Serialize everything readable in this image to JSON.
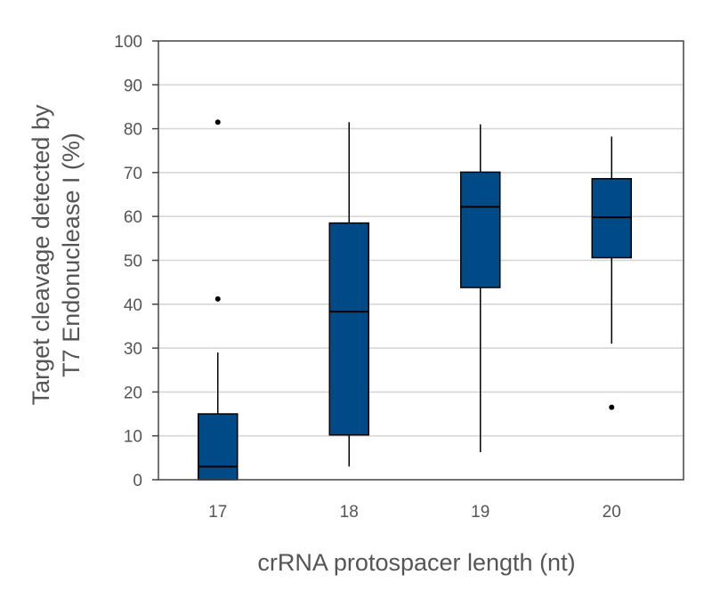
{
  "chart_data": {
    "type": "box",
    "xlabel": "crRNA protospacer length (nt)",
    "ylabel_lines": [
      "Target cleavage detected by",
      "T7 Endonuclease I (%)"
    ],
    "ylim": [
      0,
      100
    ],
    "yticks": [
      0,
      10,
      20,
      30,
      40,
      50,
      60,
      70,
      80,
      90,
      100
    ],
    "grid": true,
    "box_color": "#004a87",
    "categories": [
      "17",
      "18",
      "19",
      "20"
    ],
    "boxes": [
      {
        "category": "17",
        "whisker_low": 0,
        "q1": 0,
        "median": 3,
        "q3": 15,
        "whisker_high": 29,
        "outliers": [
          41.2,
          81.5
        ]
      },
      {
        "category": "18",
        "whisker_low": 3,
        "q1": 10.2,
        "median": 38.3,
        "q3": 58.5,
        "whisker_high": 81.5,
        "outliers": []
      },
      {
        "category": "19",
        "whisker_low": 6.3,
        "q1": 43.8,
        "median": 62.2,
        "q3": 70.1,
        "whisker_high": 81,
        "outliers": []
      },
      {
        "category": "20",
        "whisker_low": 31,
        "q1": 50.6,
        "median": 59.8,
        "q3": 68.6,
        "whisker_high": 78.2,
        "outliers": [
          16.5
        ]
      }
    ]
  }
}
